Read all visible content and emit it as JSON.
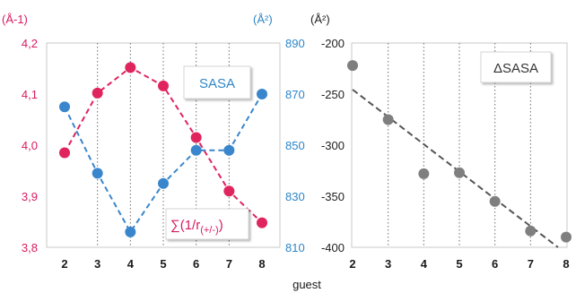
{
  "colors": {
    "pink": "#e0245e",
    "blue": "#3a86cc",
    "gray": "#7f7f7f",
    "pink_text": "#d81b60",
    "blue_text": "#2e86c8",
    "gray_text": "#222222"
  },
  "xlabel": "guest",
  "chart_data": [
    {
      "type": "line",
      "x": [
        2,
        3,
        4,
        5,
        6,
        7,
        8
      ],
      "x_ticks": [
        "2",
        "3",
        "4",
        "5",
        "6",
        "7",
        "8"
      ],
      "y_left_unit": "(Å-1)",
      "y_left_ticks": [
        "4,2",
        "4,1",
        "4,0",
        "3,9",
        "3,8"
      ],
      "y_left_range": [
        3.8,
        4.2
      ],
      "y_right_unit": "(Å²)",
      "y_right_ticks": [
        "890",
        "870",
        "850",
        "830",
        "810"
      ],
      "y_right_range": [
        810,
        890
      ],
      "vertical_grid": true,
      "series": [
        {
          "label_main": "∑(1/r",
          "label_sub": "(+/-)",
          "label_close": ")",
          "axis": "left",
          "color": "pink",
          "values": [
            3.985,
            4.102,
            4.152,
            4.116,
            4.015,
            3.91,
            3.848
          ]
        },
        {
          "name": "SASA",
          "axis": "right",
          "color": "blue",
          "values": [
            865,
            839,
            816,
            835,
            848,
            848,
            870
          ]
        }
      ]
    },
    {
      "type": "scatter",
      "x": [
        2,
        3,
        4,
        5,
        6,
        7,
        8
      ],
      "x_ticks": [
        "2",
        "3",
        "4",
        "5",
        "6",
        "7",
        "8"
      ],
      "y_unit": "(Å²)",
      "y_ticks": [
        "-200",
        "-250",
        "-300",
        "-350",
        "-400"
      ],
      "ylim": [
        -400,
        -200
      ],
      "vertical_grid": true,
      "trendline": "linear",
      "series": [
        {
          "name": "ΔSASA",
          "color": "gray",
          "values": [
            -222,
            -275,
            -328,
            -327,
            -355,
            -384,
            -390
          ]
        }
      ]
    }
  ]
}
